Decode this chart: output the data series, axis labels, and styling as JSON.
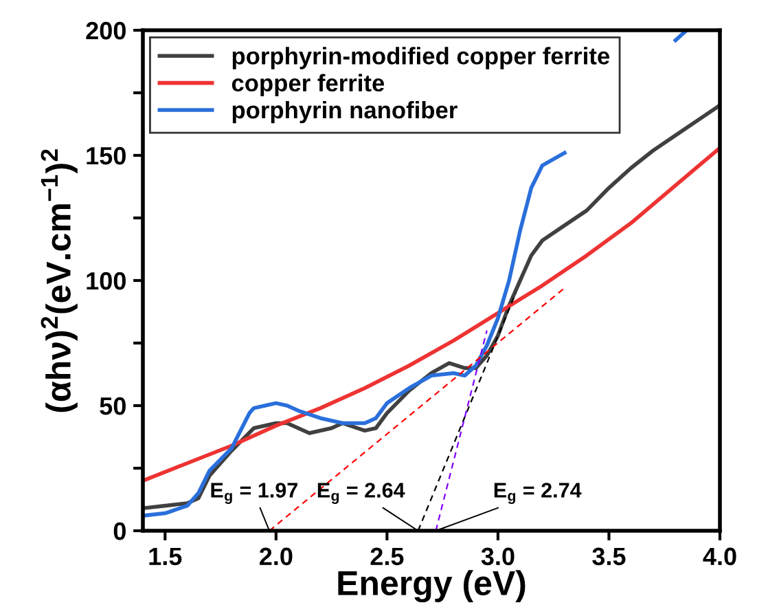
{
  "chart_data": {
    "type": "line",
    "xlabel": "Energy (eV)",
    "ylabel": "(αhν)$^{2}$(eV.cm$^{−1}$)$^{2}$",
    "xlim": [
      1.4,
      4.0
    ],
    "ylim": [
      0,
      200
    ],
    "xticks": [
      1.5,
      {
        "value": 2,
        "label": "2.0"
      },
      2.5,
      {
        "value": 3,
        "label": "3.0"
      },
      3.5,
      {
        "value": 4,
        "label": "4.0"
      }
    ],
    "yticks": [
      0,
      {
        "value": 25,
        "label": null
      },
      50,
      {
        "value": 75,
        "label": null
      },
      100,
      {
        "value": 125,
        "label": null
      },
      150,
      {
        "value": 175,
        "label": null
      },
      200
    ],
    "grid": false,
    "legend": "top left",
    "line_style": "solid",
    "marker": "none",
    "series": [
      {
        "name": "porphyrin-modified copper ferrite",
        "color": "#404040",
        "x": [
          1.4,
          1.6,
          1.65,
          1.7,
          1.8,
          1.9,
          2.0,
          2.05,
          2.15,
          2.25,
          2.3,
          2.4,
          2.45,
          2.5,
          2.6,
          2.7,
          2.78,
          2.85,
          2.9,
          2.95,
          3.0,
          3.05,
          3.1,
          3.15,
          3.2,
          3.3,
          3.4,
          3.5,
          3.6,
          3.7,
          3.8,
          3.9,
          4.0
        ],
        "values": [
          9,
          11,
          13,
          22,
          32,
          41,
          43,
          43,
          39,
          41,
          43,
          40,
          41,
          47,
          56,
          63,
          67,
          65,
          65,
          70,
          78,
          90,
          100,
          110,
          116,
          122,
          128,
          137,
          145,
          152,
          158,
          164,
          170
        ]
      },
      {
        "name": "copper ferrite",
        "color": "#ee3333",
        "x": [
          1.4,
          1.6,
          1.8,
          2.0,
          2.2,
          2.4,
          2.6,
          2.8,
          3.0,
          3.2,
          3.4,
          3.6,
          3.8,
          4.0
        ],
        "values": [
          20,
          27,
          34,
          42,
          49,
          57,
          66,
          76,
          87,
          98,
          110,
          123,
          138,
          153
        ]
      },
      {
        "name": "porphyrin nanofiber",
        "color": "#2a6fdb",
        "x": [
          1.4,
          1.5,
          1.6,
          1.65,
          1.7,
          1.8,
          1.88,
          1.9,
          1.95,
          2.0,
          2.05,
          2.1,
          2.2,
          2.3,
          2.4,
          2.45,
          2.5,
          2.6,
          2.7,
          2.8,
          2.85,
          2.9,
          2.95,
          3.0,
          3.05,
          3.1,
          3.15,
          3.2,
          3.3,
          3.4,
          3.5,
          3.6,
          3.7,
          3.8,
          3.85
        ],
        "values": [
          6,
          7,
          10,
          15,
          24,
          33,
          47,
          49,
          50,
          51,
          50,
          48,
          45,
          43,
          43,
          45,
          51,
          57,
          62,
          63,
          62,
          66,
          74,
          85,
          100,
          120,
          137,
          146,
          151,
          null,
          null,
          null,
          null,
          196,
          200
        ]
      },
      {
        "type": "line",
        "line_style": "dashed",
        "color": "#ff0000",
        "x": [
          1.97,
          3.3
        ],
        "values": [
          0,
          97
        ]
      },
      {
        "type": "line",
        "line_style": "dashed",
        "color": "#000000",
        "x": [
          2.64,
          3.08
        ],
        "values": [
          0,
          95
        ]
      },
      {
        "type": "line",
        "line_style": "dashed",
        "color": "#8000ff",
        "x": [
          2.72,
          2.95
        ],
        "values": [
          0,
          80
        ]
      }
    ],
    "annotations": [
      {
        "text": "E$_{g}$ = 1.97",
        "x": 1.97,
        "y": 0
      },
      {
        "text": "E$_{g}$ = 2.64",
        "x": 2.64,
        "y": 0
      },
      {
        "text": "E$_{g}$ = 2.74",
        "x": 2.72,
        "y": 0
      }
    ]
  }
}
